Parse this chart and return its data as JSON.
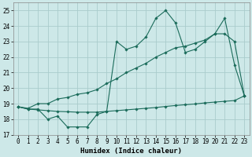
{
  "title": "",
  "xlabel": "Humidex (Indice chaleur)",
  "ylabel": "",
  "background_color": "#cde8e8",
  "grid_color": "#aacccc",
  "line_color": "#1a6b5a",
  "xlim": [
    -0.5,
    23.5
  ],
  "ylim": [
    17,
    25.5
  ],
  "yticks": [
    17,
    18,
    19,
    20,
    21,
    22,
    23,
    24,
    25
  ],
  "xticks": [
    0,
    1,
    2,
    3,
    4,
    5,
    6,
    7,
    8,
    9,
    10,
    11,
    12,
    13,
    14,
    15,
    16,
    17,
    18,
    19,
    20,
    21,
    22,
    23
  ],
  "line1_x": [
    0,
    1,
    2,
    3,
    4,
    5,
    6,
    7,
    8,
    9,
    10,
    11,
    12,
    13,
    14,
    15,
    16,
    17,
    18,
    19,
    20,
    21,
    22,
    23
  ],
  "line1_y": [
    18.8,
    18.65,
    18.65,
    18.0,
    18.2,
    17.5,
    17.5,
    17.5,
    18.3,
    18.5,
    23.0,
    22.5,
    22.7,
    23.3,
    24.5,
    25.0,
    24.2,
    22.3,
    22.5,
    23.0,
    23.5,
    24.5,
    21.5,
    19.5
  ],
  "line2_x": [
    0,
    1,
    2,
    3,
    4,
    5,
    6,
    7,
    8,
    9,
    10,
    11,
    12,
    13,
    14,
    15,
    16,
    17,
    18,
    19,
    20,
    21,
    22,
    23
  ],
  "line2_y": [
    18.8,
    18.7,
    19.0,
    19.0,
    19.3,
    19.4,
    19.6,
    19.7,
    19.9,
    20.3,
    20.6,
    21.0,
    21.3,
    21.6,
    22.0,
    22.3,
    22.6,
    22.7,
    22.9,
    23.1,
    23.5,
    23.5,
    23.0,
    19.5
  ],
  "line3_x": [
    0,
    1,
    2,
    3,
    4,
    5,
    6,
    7,
    8,
    9,
    10,
    11,
    12,
    13,
    14,
    15,
    16,
    17,
    18,
    19,
    20,
    21,
    22,
    23
  ],
  "line3_y": [
    18.8,
    18.65,
    18.6,
    18.55,
    18.5,
    18.48,
    18.45,
    18.45,
    18.45,
    18.5,
    18.55,
    18.6,
    18.65,
    18.7,
    18.75,
    18.82,
    18.88,
    18.93,
    18.98,
    19.05,
    19.1,
    19.15,
    19.2,
    19.5
  ]
}
